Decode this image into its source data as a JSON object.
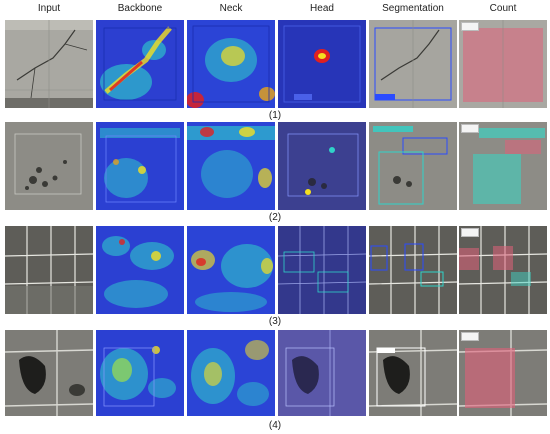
{
  "columns": [
    "Input",
    "Backbone",
    "Neck",
    "Head",
    "Segmentation",
    "Count"
  ],
  "row_labels": [
    "(1)",
    "(2)",
    "(3)",
    "(4)"
  ],
  "colors": {
    "overlay_blue": "#2233c8",
    "heat_red": "#e02020",
    "heat_yellow": "#f4e021",
    "heat_cyan": "#2fd3c9",
    "count_pink": "#e0607a",
    "count_teal": "#3fd0c0",
    "seg_box_blue": "#2a4bff"
  }
}
